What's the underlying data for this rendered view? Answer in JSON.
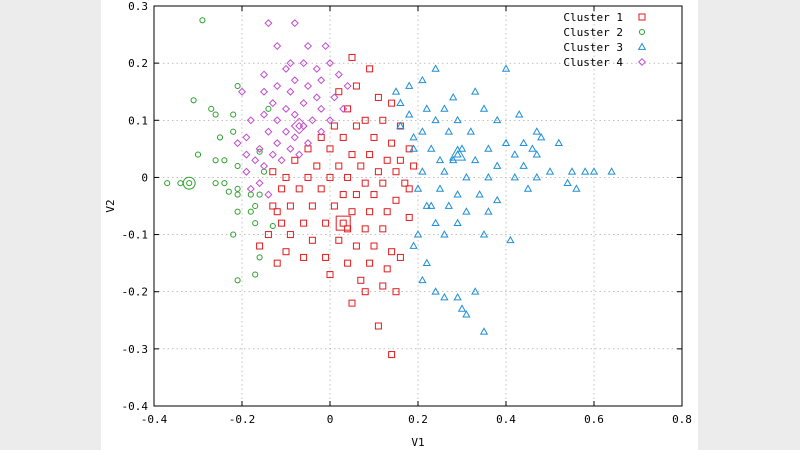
{
  "chart_data": {
    "type": "scatter",
    "title": "",
    "xlabel": "V1",
    "ylabel": "V2",
    "xlim": [
      -0.4,
      0.8
    ],
    "ylim": [
      -0.4,
      0.3
    ],
    "xticks": [
      "-0.4",
      "-0.2",
      "0",
      "0.2",
      "0.4",
      "0.6",
      "0.8"
    ],
    "yticks": [
      "-0.4",
      "-0.3",
      "-0.2",
      "-0.1",
      "0",
      "0.1",
      "0.2",
      "0.3"
    ],
    "grid": true,
    "legend_position": "top-right",
    "series": [
      {
        "name": "Cluster 1",
        "marker": "square",
        "color": "#e31a1c",
        "center": [
          0.03,
          -0.08
        ],
        "points": [
          [
            0.05,
            0.21
          ],
          [
            0.09,
            0.19
          ],
          [
            0.06,
            0.16
          ],
          [
            0.02,
            0.15
          ],
          [
            0.11,
            0.14
          ],
          [
            0.14,
            0.13
          ],
          [
            0.04,
            0.12
          ],
          [
            0.08,
            0.1
          ],
          [
            0.12,
            0.1
          ],
          [
            0.01,
            0.09
          ],
          [
            0.06,
            0.09
          ],
          [
            0.16,
            0.09
          ],
          [
            -0.02,
            0.07
          ],
          [
            0.03,
            0.07
          ],
          [
            0.1,
            0.07
          ],
          [
            0.14,
            0.06
          ],
          [
            0.18,
            0.05
          ],
          [
            -0.05,
            0.05
          ],
          [
            0.0,
            0.05
          ],
          [
            0.05,
            0.04
          ],
          [
            0.09,
            0.04
          ],
          [
            0.13,
            0.03
          ],
          [
            0.16,
            0.03
          ],
          [
            -0.08,
            0.03
          ],
          [
            -0.03,
            0.02
          ],
          [
            0.02,
            0.02
          ],
          [
            0.07,
            0.02
          ],
          [
            0.11,
            0.01
          ],
          [
            0.15,
            0.01
          ],
          [
            -0.13,
            0.01
          ],
          [
            -0.1,
            0.0
          ],
          [
            -0.05,
            0.0
          ],
          [
            0.0,
            0.0
          ],
          [
            0.04,
            0.0
          ],
          [
            0.08,
            -0.01
          ],
          [
            0.12,
            -0.01
          ],
          [
            0.17,
            -0.01
          ],
          [
            -0.11,
            -0.02
          ],
          [
            -0.07,
            -0.02
          ],
          [
            -0.02,
            -0.02
          ],
          [
            0.03,
            -0.03
          ],
          [
            0.06,
            -0.03
          ],
          [
            0.1,
            -0.03
          ],
          [
            0.15,
            -0.04
          ],
          [
            -0.13,
            -0.05
          ],
          [
            -0.09,
            -0.05
          ],
          [
            -0.04,
            -0.05
          ],
          [
            0.01,
            -0.05
          ],
          [
            0.05,
            -0.06
          ],
          [
            0.09,
            -0.06
          ],
          [
            0.13,
            -0.06
          ],
          [
            0.18,
            -0.07
          ],
          [
            -0.11,
            -0.08
          ],
          [
            -0.06,
            -0.08
          ],
          [
            -0.01,
            -0.08
          ],
          [
            0.04,
            -0.09
          ],
          [
            0.08,
            -0.09
          ],
          [
            0.12,
            -0.09
          ],
          [
            -0.14,
            -0.1
          ],
          [
            -0.09,
            -0.1
          ],
          [
            -0.04,
            -0.11
          ],
          [
            0.02,
            -0.11
          ],
          [
            0.06,
            -0.12
          ],
          [
            0.1,
            -0.12
          ],
          [
            0.14,
            -0.13
          ],
          [
            -0.1,
            -0.13
          ],
          [
            -0.06,
            -0.14
          ],
          [
            -0.01,
            -0.14
          ],
          [
            0.04,
            -0.15
          ],
          [
            0.09,
            -0.15
          ],
          [
            0.13,
            -0.16
          ],
          [
            -0.12,
            -0.15
          ],
          [
            0.0,
            -0.17
          ],
          [
            0.07,
            -0.18
          ],
          [
            0.12,
            -0.19
          ],
          [
            0.15,
            -0.2
          ],
          [
            0.08,
            -0.2
          ],
          [
            0.05,
            -0.22
          ],
          [
            0.11,
            -0.26
          ],
          [
            0.14,
            -0.31
          ],
          [
            0.16,
            -0.14
          ],
          [
            -0.16,
            -0.12
          ],
          [
            -0.12,
            -0.06
          ],
          [
            0.18,
            -0.02
          ],
          [
            0.19,
            0.02
          ]
        ]
      },
      {
        "name": "Cluster 2",
        "marker": "circle",
        "color": "#2aa02a",
        "center": [
          -0.32,
          -0.01
        ],
        "points": [
          [
            -0.29,
            0.275
          ],
          [
            -0.31,
            0.135
          ],
          [
            -0.27,
            0.12
          ],
          [
            -0.21,
            0.16
          ],
          [
            -0.22,
            0.11
          ],
          [
            -0.26,
            0.11
          ],
          [
            -0.14,
            0.12
          ],
          [
            -0.22,
            0.08
          ],
          [
            -0.25,
            0.07
          ],
          [
            -0.3,
            0.04
          ],
          [
            -0.26,
            0.03
          ],
          [
            -0.24,
            0.03
          ],
          [
            -0.21,
            0.02
          ],
          [
            -0.16,
            0.045
          ],
          [
            -0.15,
            0.01
          ],
          [
            -0.37,
            -0.01
          ],
          [
            -0.34,
            -0.01
          ],
          [
            -0.26,
            -0.01
          ],
          [
            -0.24,
            -0.01
          ],
          [
            -0.21,
            -0.02
          ],
          [
            -0.23,
            -0.025
          ],
          [
            -0.18,
            -0.03
          ],
          [
            -0.21,
            -0.03
          ],
          [
            -0.17,
            -0.05
          ],
          [
            -0.21,
            -0.06
          ],
          [
            -0.18,
            -0.06
          ],
          [
            -0.17,
            -0.08
          ],
          [
            -0.13,
            -0.085
          ],
          [
            -0.22,
            -0.1
          ],
          [
            -0.16,
            -0.14
          ],
          [
            -0.21,
            -0.18
          ],
          [
            -0.17,
            -0.17
          ],
          [
            -0.16,
            -0.03
          ]
        ]
      },
      {
        "name": "Cluster 3",
        "marker": "triangle",
        "color": "#1f8fd6",
        "center": [
          0.29,
          0.04
        ],
        "points": [
          [
            0.4,
            0.19
          ],
          [
            0.24,
            0.19
          ],
          [
            0.21,
            0.17
          ],
          [
            0.18,
            0.16
          ],
          [
            0.15,
            0.15
          ],
          [
            0.33,
            0.15
          ],
          [
            0.28,
            0.14
          ],
          [
            0.16,
            0.13
          ],
          [
            0.22,
            0.12
          ],
          [
            0.26,
            0.12
          ],
          [
            0.35,
            0.12
          ],
          [
            0.43,
            0.11
          ],
          [
            0.18,
            0.11
          ],
          [
            0.24,
            0.1
          ],
          [
            0.29,
            0.1
          ],
          [
            0.38,
            0.1
          ],
          [
            0.16,
            0.09
          ],
          [
            0.21,
            0.08
          ],
          [
            0.27,
            0.08
          ],
          [
            0.32,
            0.08
          ],
          [
            0.47,
            0.08
          ],
          [
            0.48,
            0.07
          ],
          [
            0.4,
            0.06
          ],
          [
            0.44,
            0.06
          ],
          [
            0.52,
            0.06
          ],
          [
            0.19,
            0.05
          ],
          [
            0.23,
            0.05
          ],
          [
            0.3,
            0.05
          ],
          [
            0.36,
            0.05
          ],
          [
            0.42,
            0.04
          ],
          [
            0.47,
            0.04
          ],
          [
            0.25,
            0.03
          ],
          [
            0.28,
            0.03
          ],
          [
            0.33,
            0.03
          ],
          [
            0.38,
            0.02
          ],
          [
            0.44,
            0.02
          ],
          [
            0.5,
            0.01
          ],
          [
            0.55,
            0.01
          ],
          [
            0.58,
            0.01
          ],
          [
            0.6,
            0.01
          ],
          [
            0.64,
            0.01
          ],
          [
            0.21,
            0.01
          ],
          [
            0.26,
            0.01
          ],
          [
            0.31,
            0.0
          ],
          [
            0.36,
            0.0
          ],
          [
            0.42,
            0.0
          ],
          [
            0.47,
            0.0
          ],
          [
            0.54,
            -0.01
          ],
          [
            0.2,
            -0.02
          ],
          [
            0.25,
            -0.02
          ],
          [
            0.29,
            -0.03
          ],
          [
            0.34,
            -0.03
          ],
          [
            0.38,
            -0.04
          ],
          [
            0.45,
            -0.02
          ],
          [
            0.56,
            -0.02
          ],
          [
            0.22,
            -0.05
          ],
          [
            0.27,
            -0.05
          ],
          [
            0.31,
            -0.06
          ],
          [
            0.36,
            -0.06
          ],
          [
            0.24,
            -0.08
          ],
          [
            0.29,
            -0.08
          ],
          [
            0.2,
            -0.1
          ],
          [
            0.26,
            -0.1
          ],
          [
            0.35,
            -0.1
          ],
          [
            0.41,
            -0.11
          ],
          [
            0.19,
            -0.12
          ],
          [
            0.22,
            -0.15
          ],
          [
            0.21,
            -0.18
          ],
          [
            0.24,
            -0.2
          ],
          [
            0.26,
            -0.21
          ],
          [
            0.29,
            -0.21
          ],
          [
            0.3,
            -0.23
          ],
          [
            0.31,
            -0.24
          ],
          [
            0.35,
            -0.27
          ],
          [
            0.33,
            -0.2
          ],
          [
            0.23,
            -0.05
          ],
          [
            0.46,
            0.05
          ],
          [
            0.19,
            0.07
          ]
        ]
      },
      {
        "name": "Cluster 4",
        "marker": "diamond",
        "color": "#c24ccf",
        "center": [
          -0.07,
          0.09
        ],
        "points": [
          [
            -0.14,
            0.27
          ],
          [
            -0.08,
            0.27
          ],
          [
            -0.01,
            0.23
          ],
          [
            -0.12,
            0.23
          ],
          [
            -0.05,
            0.23
          ],
          [
            0.0,
            0.2
          ],
          [
            -0.09,
            0.2
          ],
          [
            -0.03,
            0.19
          ],
          [
            -0.1,
            0.19
          ],
          [
            -0.15,
            0.18
          ],
          [
            0.02,
            0.18
          ],
          [
            -0.08,
            0.17
          ],
          [
            -0.02,
            0.17
          ],
          [
            -0.05,
            0.16
          ],
          [
            -0.12,
            0.16
          ],
          [
            0.04,
            0.16
          ],
          [
            -0.15,
            0.15
          ],
          [
            -0.09,
            0.15
          ],
          [
            -0.03,
            0.14
          ],
          [
            0.01,
            0.14
          ],
          [
            -0.13,
            0.13
          ],
          [
            -0.06,
            0.13
          ],
          [
            -0.1,
            0.12
          ],
          [
            -0.02,
            0.12
          ],
          [
            0.03,
            0.12
          ],
          [
            -0.15,
            0.11
          ],
          [
            -0.08,
            0.11
          ],
          [
            -0.04,
            0.1
          ],
          [
            0.0,
            0.1
          ],
          [
            -0.12,
            0.1
          ],
          [
            -0.18,
            0.1
          ],
          [
            -0.06,
            0.09
          ],
          [
            -0.1,
            0.08
          ],
          [
            -0.14,
            0.08
          ],
          [
            -0.02,
            0.08
          ],
          [
            -0.19,
            0.07
          ],
          [
            -0.08,
            0.07
          ],
          [
            -0.12,
            0.06
          ],
          [
            -0.05,
            0.06
          ],
          [
            -0.16,
            0.05
          ],
          [
            -0.09,
            0.05
          ],
          [
            -0.13,
            0.04
          ],
          [
            -0.07,
            0.04
          ],
          [
            -0.17,
            0.03
          ],
          [
            -0.11,
            0.03
          ],
          [
            -0.15,
            0.02
          ],
          [
            -0.19,
            0.01
          ],
          [
            -0.16,
            -0.01
          ],
          [
            -0.18,
            -0.02
          ],
          [
            -0.14,
            -0.03
          ],
          [
            -0.19,
            0.04
          ],
          [
            -0.21,
            0.06
          ],
          [
            -0.2,
            0.15
          ],
          [
            -0.06,
            0.2
          ]
        ]
      }
    ]
  }
}
